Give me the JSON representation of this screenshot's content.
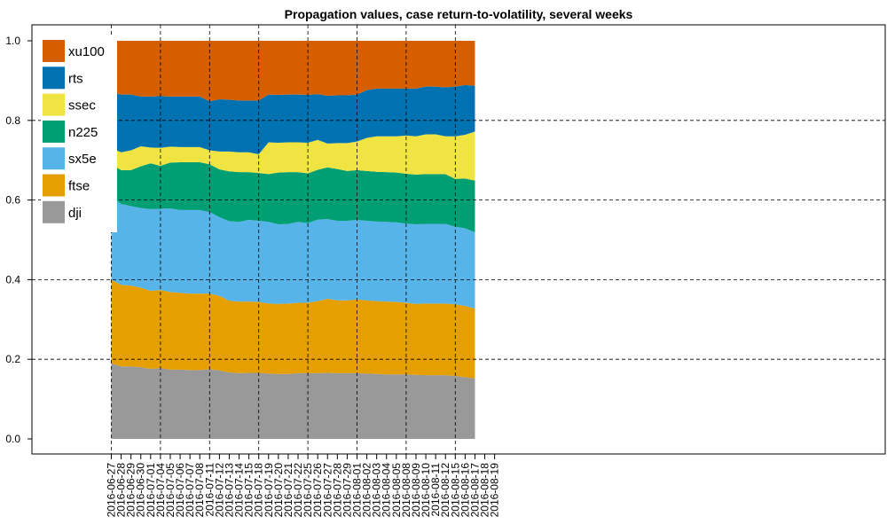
{
  "chart_data": {
    "type": "area",
    "stacked": true,
    "title": "Propagation values, case return-to-volatility, several weeks",
    "xlabel": "",
    "ylabel": "",
    "ylim": [
      0,
      1
    ],
    "yticks": [
      0.0,
      0.2,
      0.4,
      0.6,
      0.8,
      1.0
    ],
    "ytick_labels": [
      "0.0",
      "0.2",
      "0.4",
      "0.6",
      "0.8",
      "1.0"
    ],
    "grid": "dashed lines at weekly x ticks and at y = 0.2, 0.4, 0.6, 0.8",
    "legend": "top-left",
    "x": [
      "2016-06-27",
      "2016-06-28",
      "2016-06-29",
      "2016-06-30",
      "2016-07-01",
      "2016-07-04",
      "2016-07-05",
      "2016-07-06",
      "2016-07-07",
      "2016-07-08",
      "2016-07-11",
      "2016-07-12",
      "2016-07-13",
      "2016-07-14",
      "2016-07-15",
      "2016-07-18",
      "2016-07-19",
      "2016-07-20",
      "2016-07-21",
      "2016-07-22",
      "2016-07-25",
      "2016-07-26",
      "2016-07-27",
      "2016-07-28",
      "2016-07-29",
      "2016-08-01",
      "2016-08-02",
      "2016-08-03",
      "2016-08-04",
      "2016-08-05",
      "2016-08-08",
      "2016-08-09",
      "2016-08-10",
      "2016-08-11",
      "2016-08-12",
      "2016-08-15",
      "2016-08-16",
      "2016-08-17"
    ],
    "x_tick_labels": [
      "2016-06-27",
      "2016-06-28",
      "2016-06-29",
      "2016-06-30",
      "2016-07-01",
      "2016-07-04",
      "2016-07-05",
      "2016-07-06",
      "2016-07-07",
      "2016-07-08",
      "2016-07-11",
      "2016-07-12",
      "2016-07-13",
      "2016-07-14",
      "2016-07-15",
      "2016-07-18",
      "2016-07-19",
      "2016-07-20",
      "2016-07-21",
      "2016-07-22",
      "2016-07-25",
      "2016-07-26",
      "2016-07-27",
      "2016-07-28",
      "2016-07-29",
      "2016-08-01",
      "2016-08-02",
      "2016-08-03",
      "2016-08-04",
      "2016-08-05",
      "2016-08-08",
      "2016-08-09",
      "2016-08-10",
      "2016-08-11",
      "2016-08-12",
      "2016-08-15",
      "2016-08-16",
      "2016-08-17",
      "2016-08-18",
      "2016-08-19"
    ],
    "week_lines": [
      "2016-06-27",
      "2016-07-04",
      "2016-07-11",
      "2016-07-18",
      "2016-07-25",
      "2016-08-01",
      "2016-08-08",
      "2016-08-15"
    ],
    "series": [
      {
        "name": "dji",
        "color": "#999999",
        "values": [
          0.19,
          0.182,
          0.182,
          0.18,
          0.176,
          0.178,
          0.174,
          0.174,
          0.173,
          0.173,
          0.175,
          0.172,
          0.167,
          0.165,
          0.166,
          0.166,
          0.164,
          0.163,
          0.163,
          0.165,
          0.165,
          0.165,
          0.166,
          0.165,
          0.165,
          0.165,
          0.164,
          0.163,
          0.162,
          0.162,
          0.162,
          0.161,
          0.16,
          0.16,
          0.16,
          0.158,
          0.155,
          0.152
        ]
      },
      {
        "name": "ftse",
        "color": "#E69F00",
        "values": [
          0.21,
          0.205,
          0.203,
          0.2,
          0.196,
          0.196,
          0.195,
          0.193,
          0.192,
          0.192,
          0.19,
          0.187,
          0.18,
          0.18,
          0.179,
          0.178,
          0.176,
          0.176,
          0.177,
          0.177,
          0.177,
          0.181,
          0.186,
          0.183,
          0.183,
          0.185,
          0.184,
          0.183,
          0.183,
          0.182,
          0.18,
          0.178,
          0.18,
          0.18,
          0.18,
          0.18,
          0.179,
          0.175
        ]
      },
      {
        "name": "sx5e",
        "color": "#56B4E9",
        "values": [
          0.21,
          0.203,
          0.2,
          0.2,
          0.205,
          0.204,
          0.21,
          0.208,
          0.21,
          0.21,
          0.205,
          0.198,
          0.2,
          0.2,
          0.205,
          0.204,
          0.205,
          0.2,
          0.2,
          0.203,
          0.2,
          0.205,
          0.2,
          0.2,
          0.2,
          0.2,
          0.2,
          0.2,
          0.2,
          0.2,
          0.199,
          0.2,
          0.2,
          0.2,
          0.2,
          0.195,
          0.195,
          0.192
        ]
      },
      {
        "name": "n225",
        "color": "#009E73",
        "values": [
          0.08,
          0.085,
          0.09,
          0.105,
          0.115,
          0.108,
          0.115,
          0.12,
          0.12,
          0.12,
          0.12,
          0.12,
          0.125,
          0.125,
          0.12,
          0.12,
          0.12,
          0.13,
          0.13,
          0.125,
          0.125,
          0.125,
          0.13,
          0.13,
          0.125,
          0.125,
          0.125,
          0.125,
          0.125,
          0.125,
          0.125,
          0.125,
          0.125,
          0.125,
          0.125,
          0.12,
          0.125,
          0.13
        ]
      },
      {
        "name": "ssec",
        "color": "#F0E442",
        "values": [
          0.04,
          0.045,
          0.05,
          0.05,
          0.04,
          0.045,
          0.04,
          0.038,
          0.038,
          0.038,
          0.035,
          0.045,
          0.05,
          0.05,
          0.05,
          0.047,
          0.08,
          0.075,
          0.075,
          0.075,
          0.077,
          0.075,
          0.06,
          0.065,
          0.07,
          0.072,
          0.083,
          0.089,
          0.09,
          0.091,
          0.096,
          0.096,
          0.1,
          0.1,
          0.095,
          0.107,
          0.11,
          0.123
        ]
      },
      {
        "name": "rts",
        "color": "#0072B2",
        "values": [
          0.14,
          0.145,
          0.14,
          0.125,
          0.128,
          0.13,
          0.126,
          0.127,
          0.127,
          0.127,
          0.123,
          0.131,
          0.13,
          0.13,
          0.13,
          0.135,
          0.12,
          0.12,
          0.12,
          0.12,
          0.12,
          0.115,
          0.12,
          0.12,
          0.12,
          0.118,
          0.12,
          0.12,
          0.12,
          0.12,
          0.118,
          0.12,
          0.12,
          0.12,
          0.123,
          0.125,
          0.125,
          0.115
        ]
      },
      {
        "name": "xu100",
        "color": "#D55E00",
        "values": [
          0.13,
          0.135,
          0.135,
          0.14,
          0.14,
          0.139,
          0.14,
          0.14,
          0.14,
          0.14,
          0.152,
          0.147,
          0.148,
          0.15,
          0.15,
          0.15,
          0.135,
          0.136,
          0.135,
          0.135,
          0.136,
          0.134,
          0.138,
          0.137,
          0.137,
          0.135,
          0.124,
          0.12,
          0.12,
          0.12,
          0.12,
          0.12,
          0.115,
          0.115,
          0.117,
          0.115,
          0.111,
          0.113
        ]
      }
    ]
  }
}
